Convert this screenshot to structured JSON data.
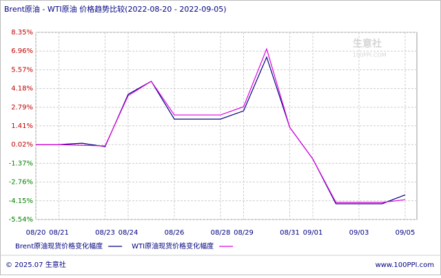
{
  "chart_data": {
    "type": "line",
    "title": "Brent原油 - WTI原油 价格趋势比较(2022-08-20 - 2022-09-05)",
    "categories": [
      "08/20",
      "08/21",
      null,
      "08/23",
      "08/24",
      null,
      "08/26",
      null,
      "08/28",
      "08/29",
      null,
      "08/31",
      "09/01",
      null,
      "09/03",
      null,
      "09/05"
    ],
    "series": [
      {
        "name": "Brent原油现货价格变化幅度",
        "color": "#000080",
        "values": [
          0.02,
          0.02,
          0.12,
          -0.13,
          3.75,
          4.72,
          1.91,
          1.91,
          1.91,
          2.52,
          6.51,
          1.3,
          -1.05,
          -4.37,
          -4.37,
          -4.37,
          -3.71
        ]
      },
      {
        "name": "WTI原油现货价格变化幅度",
        "color": "#e000e0",
        "values": [
          0.02,
          0.02,
          -0.03,
          -0.08,
          3.65,
          4.72,
          2.22,
          2.22,
          2.22,
          2.83,
          7.12,
          1.3,
          -1.05,
          -4.27,
          -4.27,
          -4.27,
          -4.07
        ]
      }
    ],
    "ylim": [
      -5.54,
      8.35
    ],
    "yticks": [
      {
        "value": 8.35,
        "label": "8.35%"
      },
      {
        "value": 6.96,
        "label": "6.96%"
      },
      {
        "value": 5.57,
        "label": "5.57%"
      },
      {
        "value": 4.18,
        "label": "4.18%"
      },
      {
        "value": 2.79,
        "label": "2.79%"
      },
      {
        "value": 1.41,
        "label": "1.41%"
      },
      {
        "value": 0.02,
        "label": "0.02%"
      },
      {
        "value": -1.37,
        "label": "-1.37%"
      },
      {
        "value": -2.76,
        "label": "-2.76%"
      },
      {
        "value": -4.15,
        "label": "-4.15%"
      },
      {
        "value": -5.54,
        "label": "-5.54%"
      }
    ],
    "grid": true,
    "watermark": [
      "生意社",
      "100PPI.COM"
    ],
    "footer": {
      "left": "© 2025.07 生意社",
      "right": "www.100PPI.com"
    }
  }
}
